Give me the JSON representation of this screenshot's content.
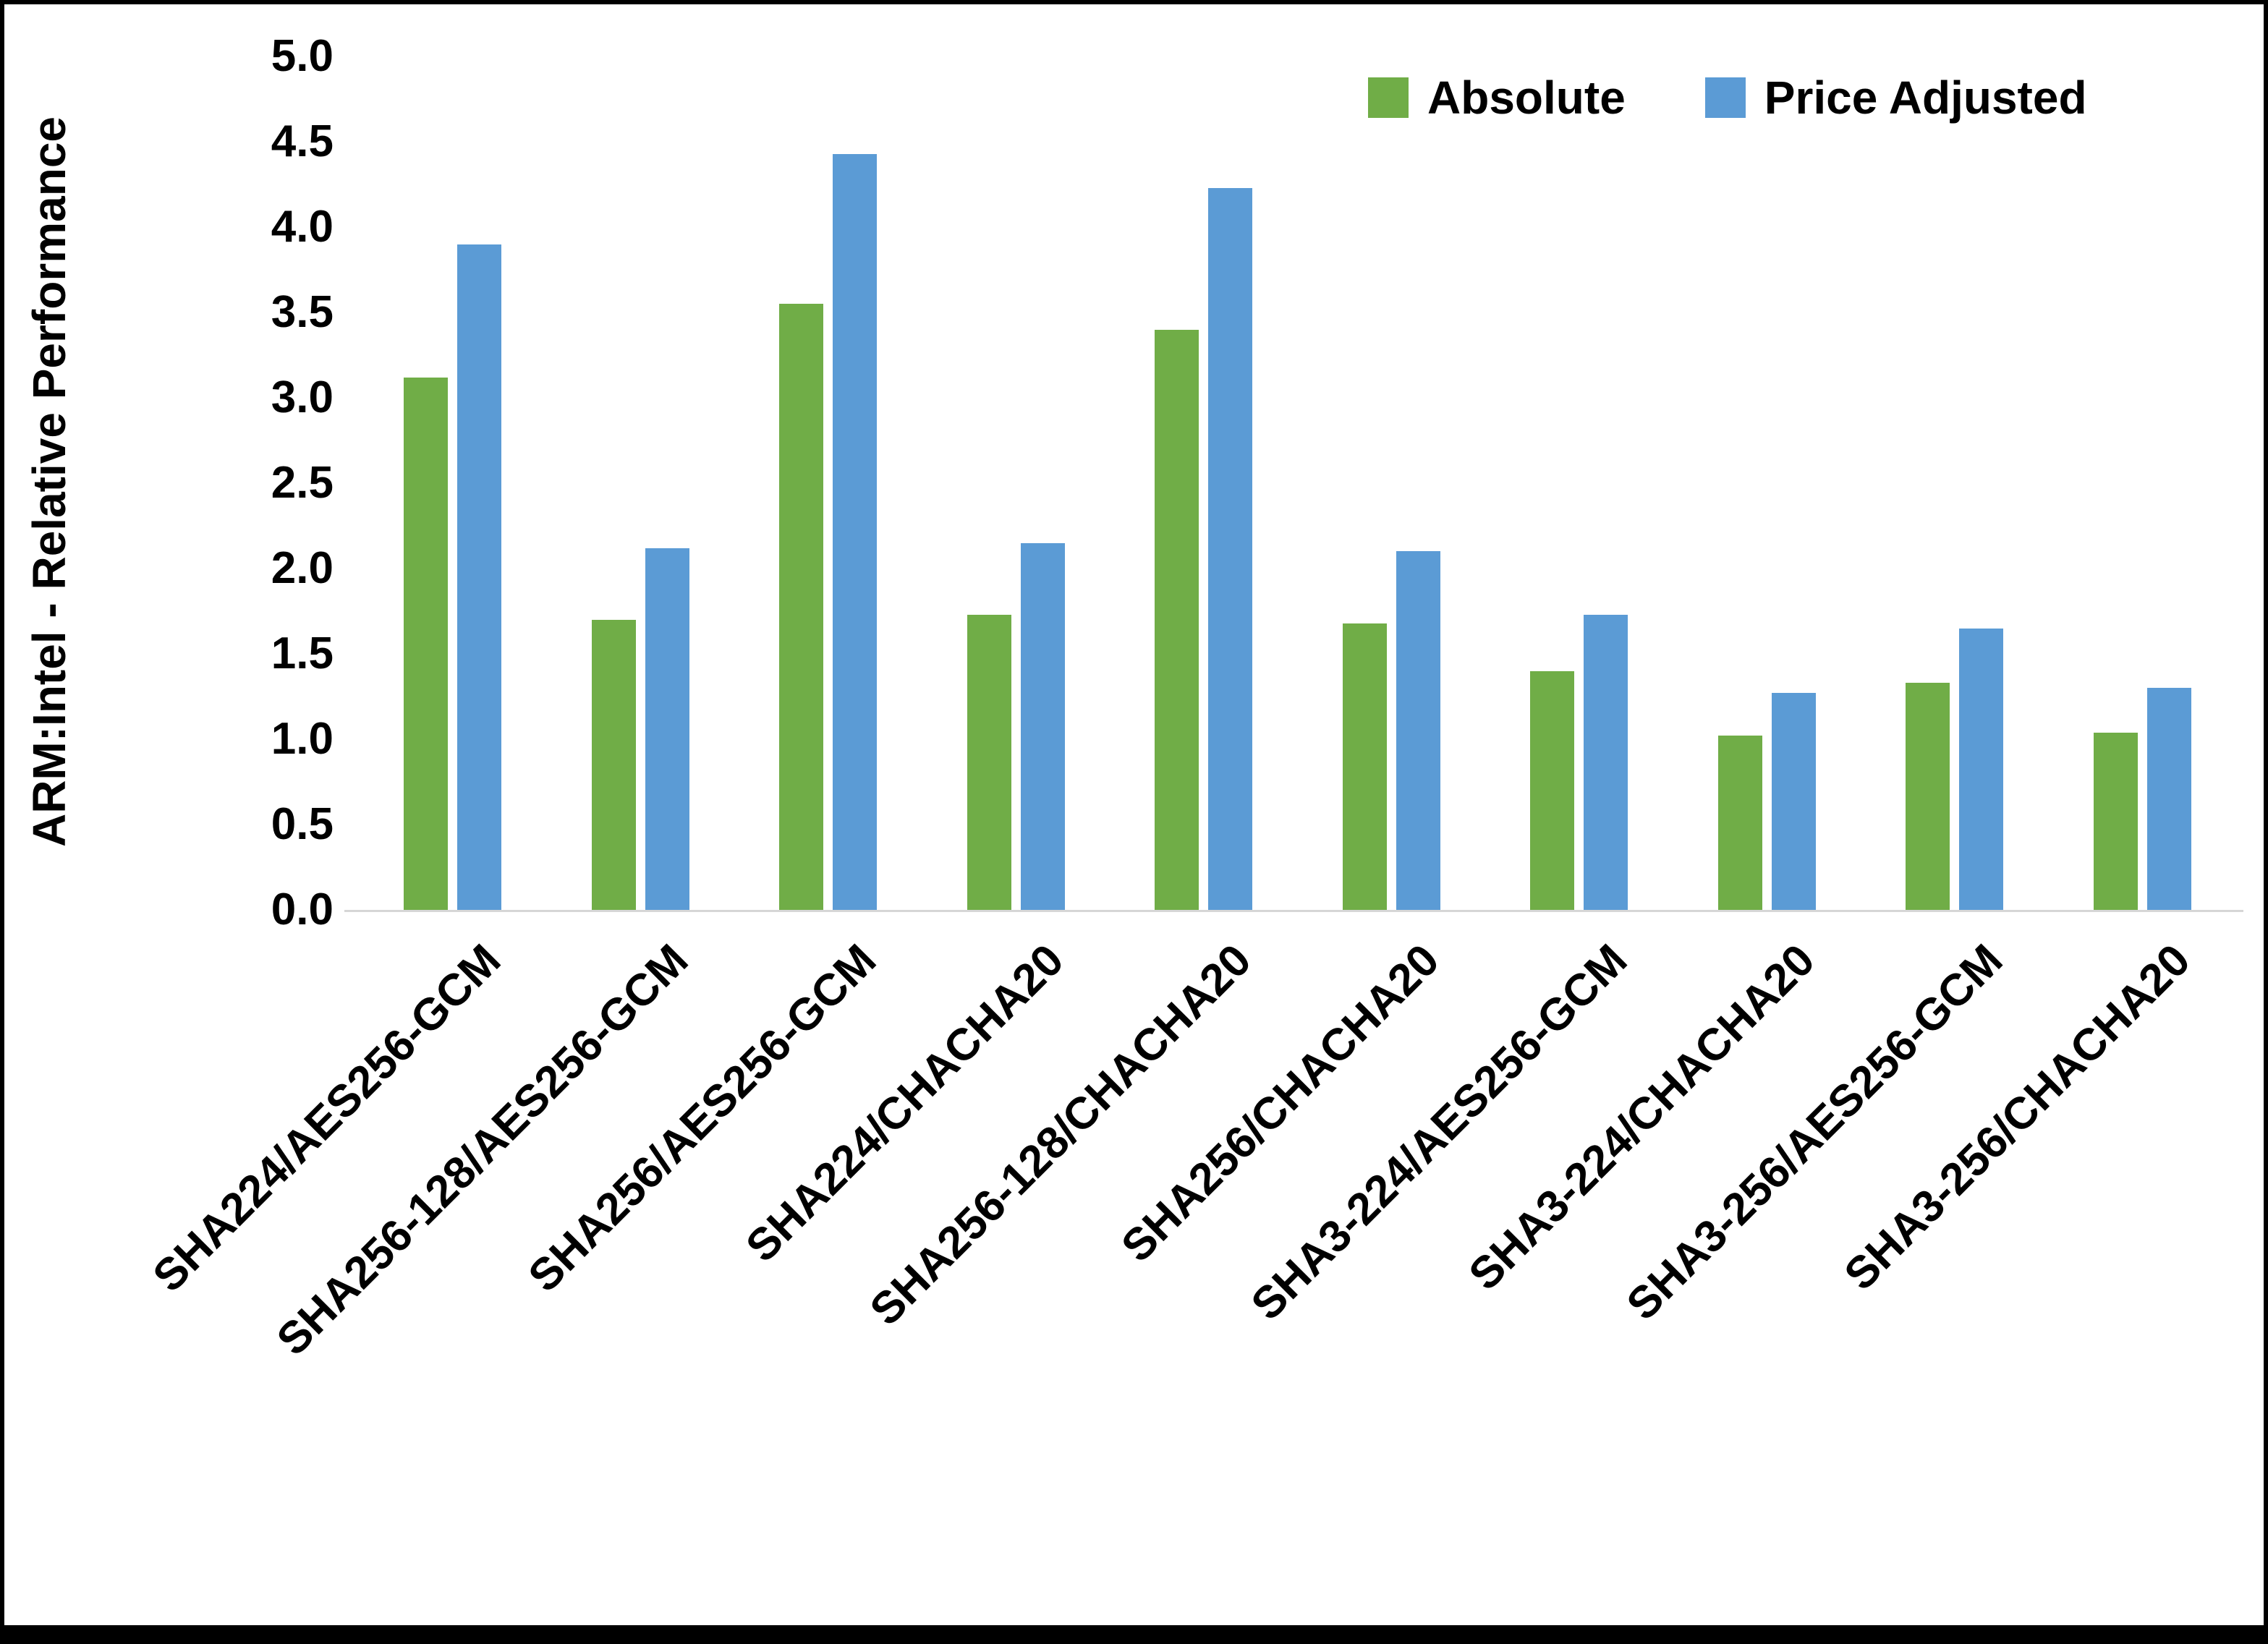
{
  "chart_data": {
    "type": "bar",
    "title": "",
    "xlabel": "",
    "ylabel": "ARM:Intel - Relative Performance",
    "ylim": [
      0.0,
      5.0
    ],
    "y_ticks": [
      "5.0",
      "4.5",
      "4.0",
      "3.5",
      "3.0",
      "2.5",
      "2.0",
      "1.5",
      "1.0",
      "0.5",
      "0.0"
    ],
    "grid": false,
    "legend_position": "top-right",
    "categories": [
      "SHA224/AES256-GCM",
      "SHA256-128/AES256-GCM",
      "SHA256/AES256-GCM",
      "SHA224/CHACHA20",
      "SHA256-128/CHACHA20",
      "SHA256/CHACHA20",
      "SHA3-224/AES256-GCM",
      "SHA3-224/CHACHA20",
      "SHA3-256/AES256-GCM",
      "SHA3-256/CHACHA20"
    ],
    "series": [
      {
        "name": "Absolute",
        "color": "#70AD47",
        "values": [
          3.12,
          1.7,
          3.55,
          1.73,
          3.4,
          1.68,
          1.4,
          1.02,
          1.33,
          1.04
        ]
      },
      {
        "name": "Price Adjusted",
        "color": "#5B9BD5",
        "values": [
          3.9,
          2.12,
          4.43,
          2.15,
          4.23,
          2.1,
          1.73,
          1.27,
          1.65,
          1.3
        ]
      }
    ]
  }
}
